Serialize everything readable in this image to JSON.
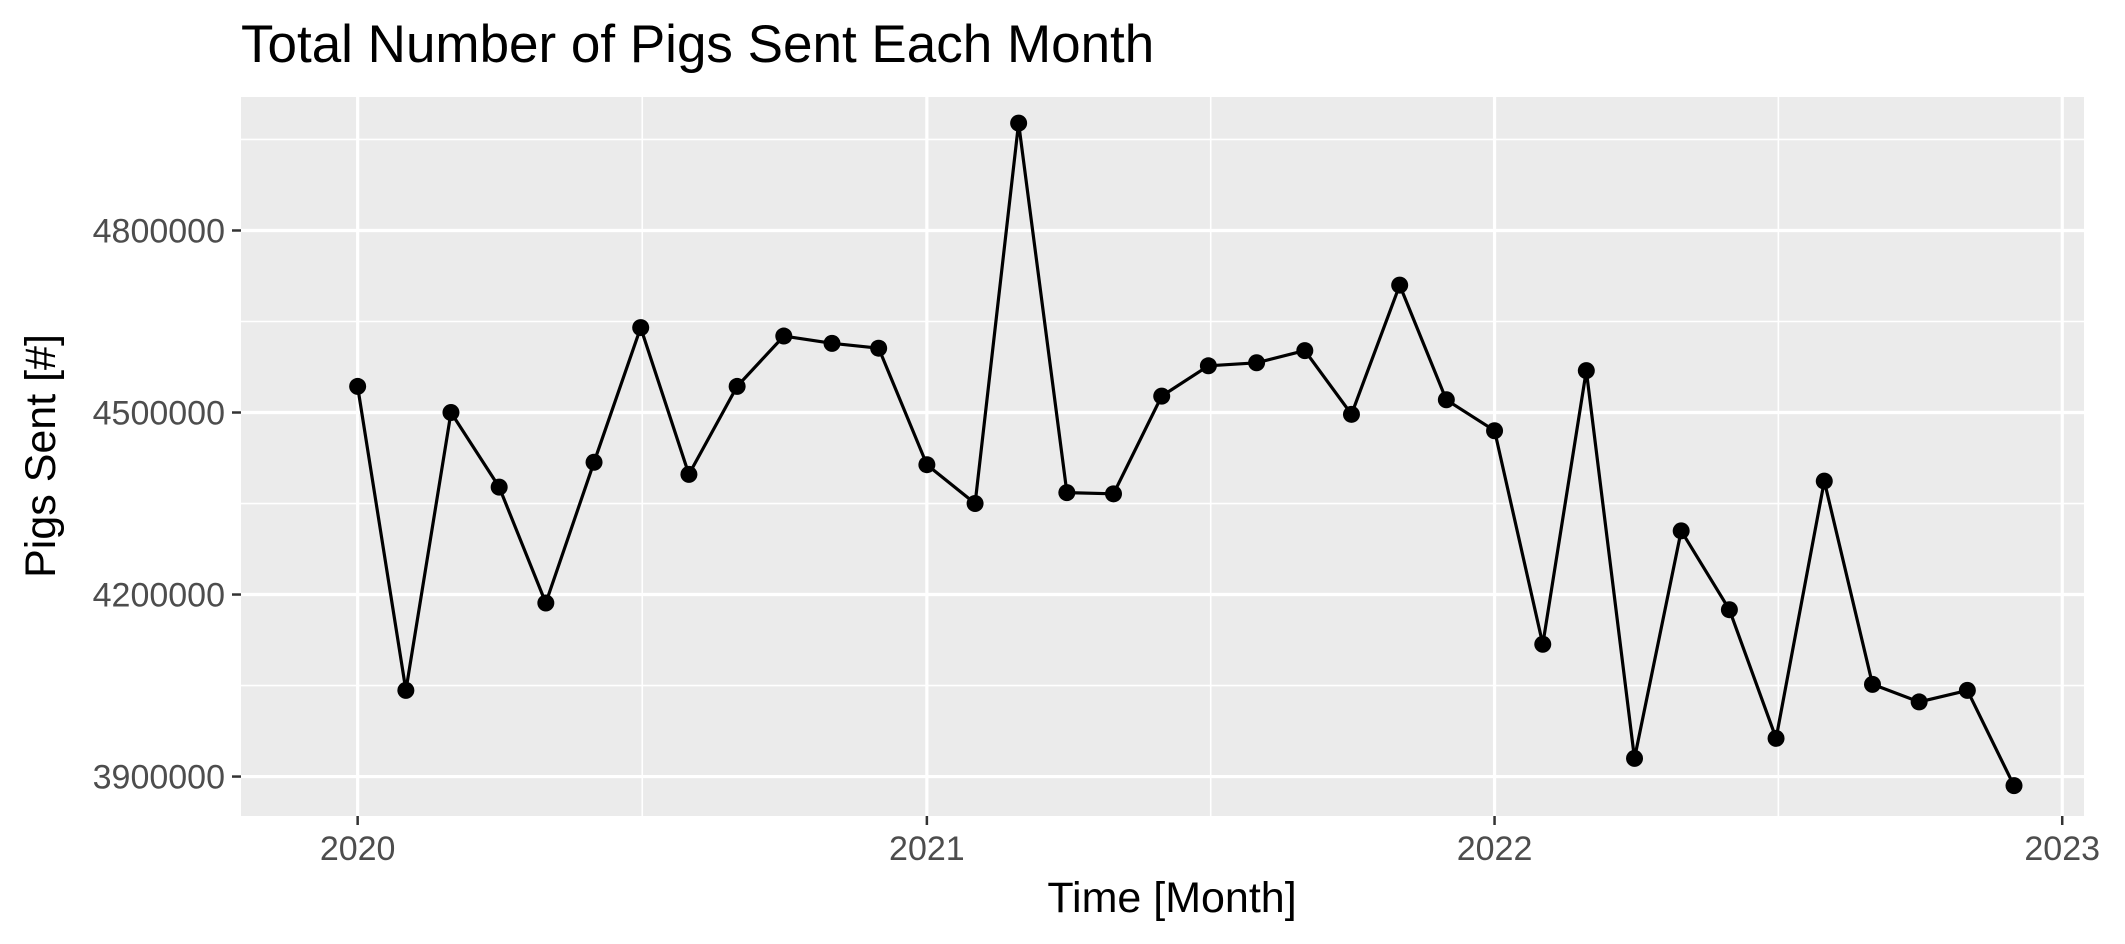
{
  "chart_data": {
    "type": "line",
    "title": "Total Number of Pigs Sent Each Month",
    "xlabel": "Time [Month]",
    "ylabel": "Pigs Sent [#]",
    "x_ticks": [
      "2020",
      "2021",
      "2022",
      "2023"
    ],
    "y_ticks": [
      3900000,
      4200000,
      4500000,
      4800000
    ],
    "xlim": [
      "2019-10-18",
      "2023-01-15"
    ],
    "ylim": [
      3835000,
      5020000
    ],
    "grid": true,
    "legend": "none",
    "colors": {
      "panel": "#ebebeb",
      "grid": "#ffffff",
      "line": "#000000",
      "point": "#000000",
      "tick_text": "#4d4d4d"
    },
    "series": [
      {
        "x": [
          "2020-01",
          "2020-02",
          "2020-03",
          "2020-04",
          "2020-05",
          "2020-06",
          "2020-07",
          "2020-08",
          "2020-09",
          "2020-10",
          "2020-11",
          "2020-12",
          "2021-01",
          "2021-02",
          "2021-03",
          "2021-04",
          "2021-05",
          "2021-06",
          "2021-07",
          "2021-08",
          "2021-09",
          "2021-10",
          "2021-11",
          "2021-12",
          "2022-01",
          "2022-02",
          "2022-03",
          "2022-04",
          "2022-05",
          "2022-06",
          "2022-07",
          "2022-08",
          "2022-09",
          "2022-10",
          "2022-11",
          "2022-12"
        ],
        "values": [
          4543000,
          4042000,
          4500000,
          4377000,
          4186000,
          4418000,
          4640000,
          4398000,
          4543000,
          4626000,
          4614000,
          4606000,
          4414000,
          4350000,
          4977000,
          4368000,
          4366000,
          4527000,
          4577000,
          4582000,
          4602000,
          4497000,
          4710000,
          4521000,
          4470000,
          4118000,
          4569000,
          3930000,
          4305000,
          4175000,
          3963000,
          4387000,
          4052000,
          4023000,
          4042000,
          3885000
        ]
      }
    ]
  }
}
